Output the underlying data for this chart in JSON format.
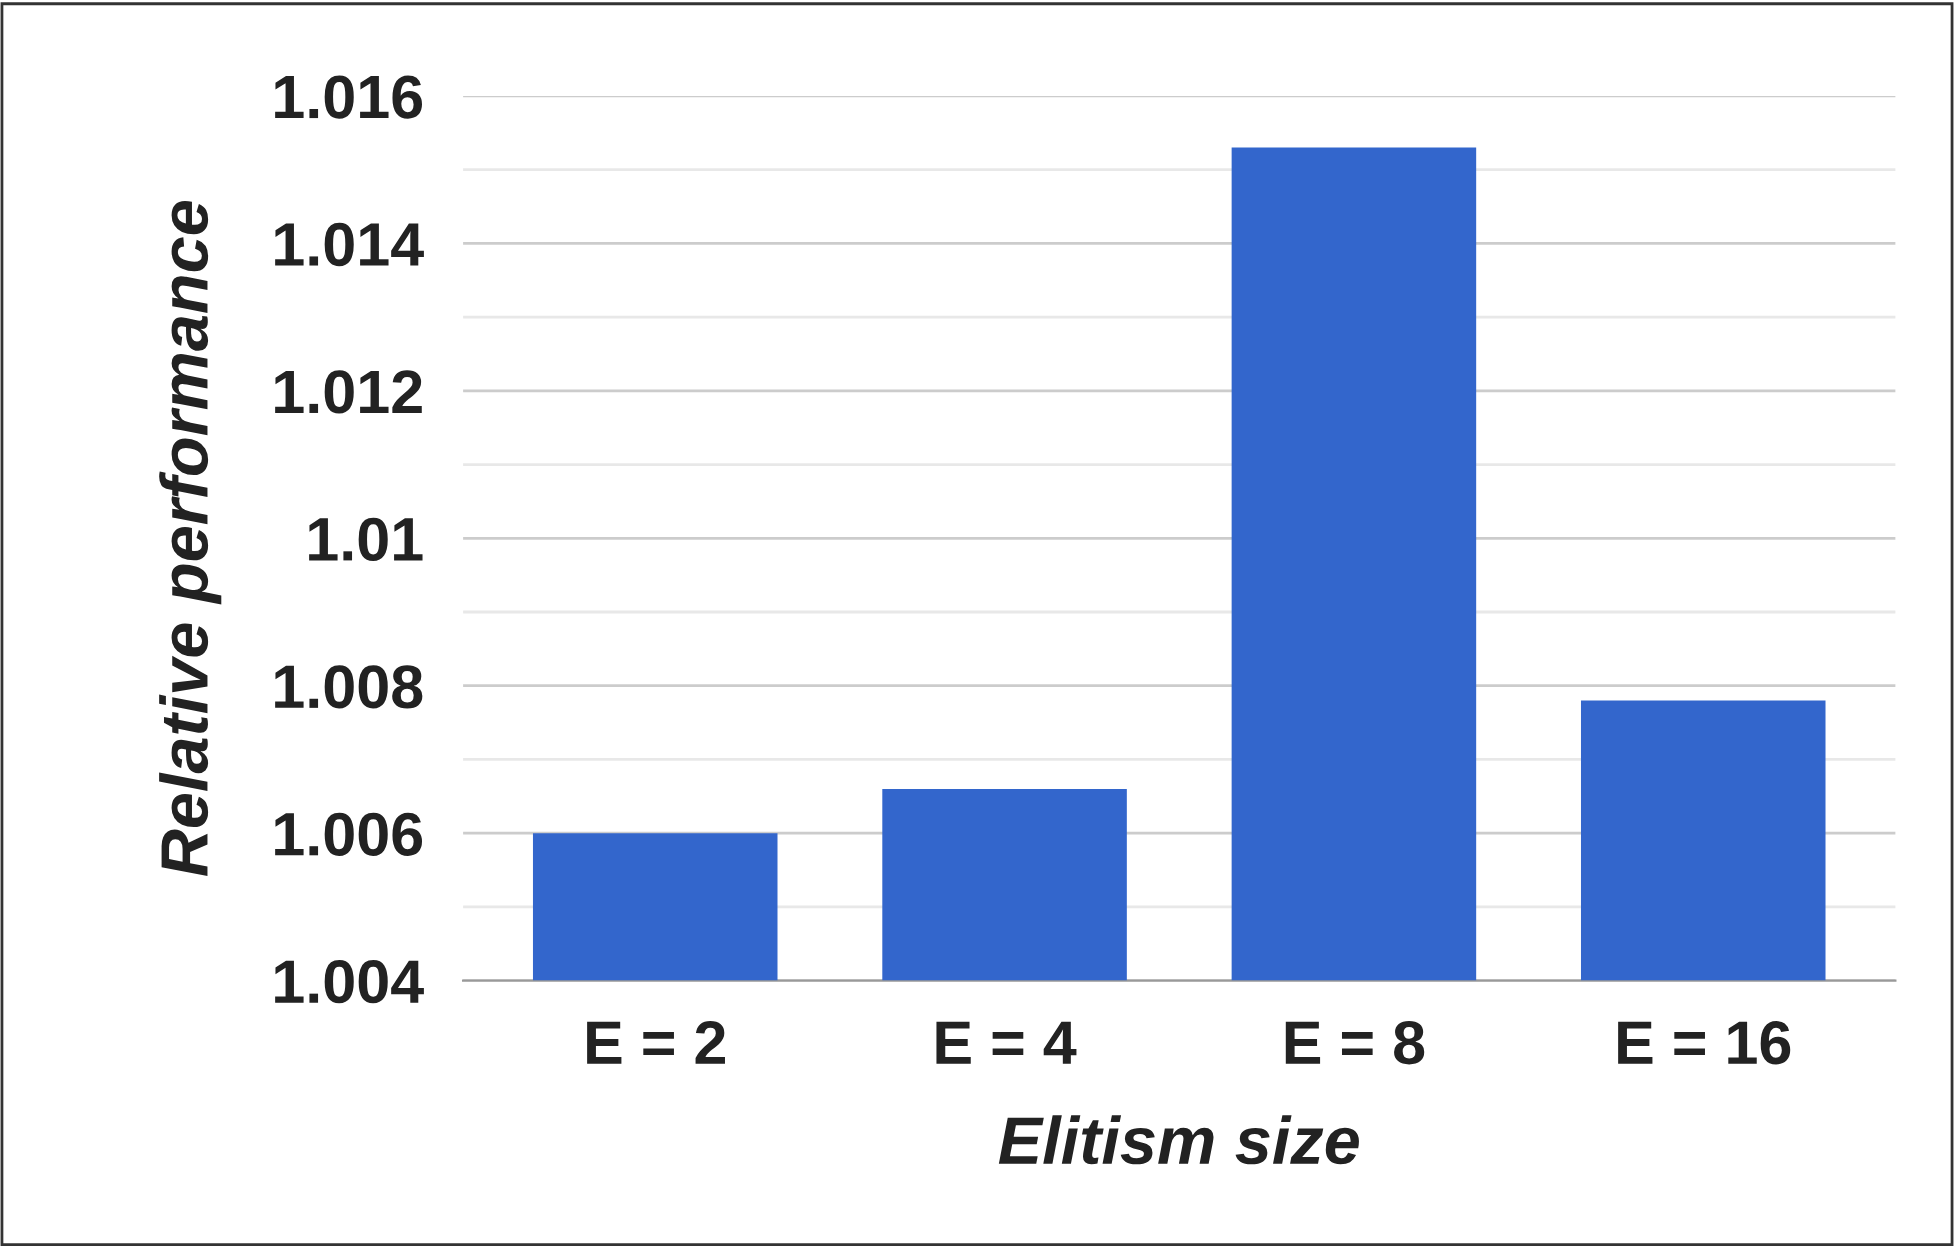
{
  "chart_data": {
    "type": "bar",
    "xlabel": "Elitism size",
    "ylabel": "Relative performance",
    "categories": [
      "E = 2",
      "E = 4",
      "E = 8",
      "E = 16"
    ],
    "values": [
      1.006,
      1.0066,
      1.0153,
      1.0078
    ],
    "color": "#3366cc",
    "ylim": [
      1.004,
      1.016
    ],
    "yticks": [
      1.004,
      {
        "value": 1.005,
        "label": null
      },
      1.006,
      {
        "value": 1.007,
        "label": null
      },
      1.008,
      {
        "value": 1.009,
        "label": null
      },
      1.01,
      {
        "value": 1.011,
        "label": null
      },
      1.012,
      {
        "value": 1.013,
        "label": null
      },
      1.014,
      {
        "value": 1.015,
        "label": null
      },
      1.016
    ],
    "grid": "y",
    "legend": false
  }
}
